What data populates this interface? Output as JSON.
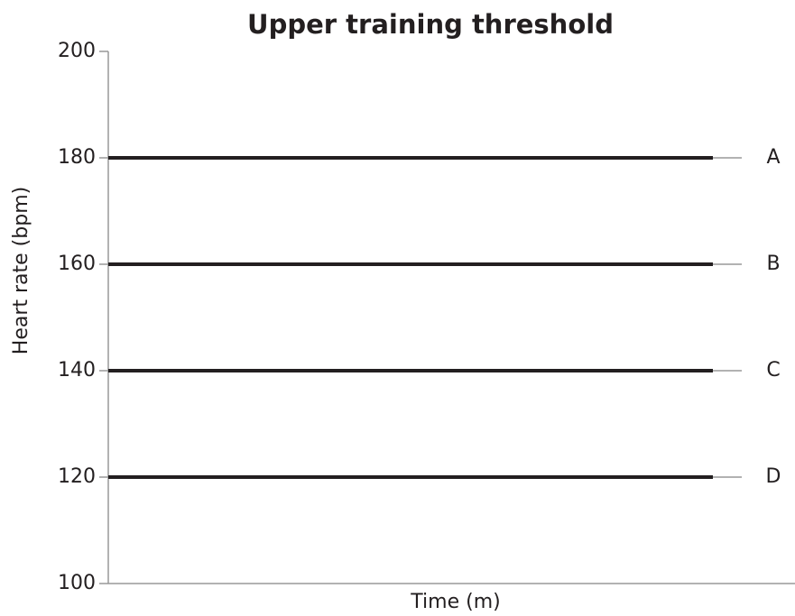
{
  "chart_data": {
    "type": "hline",
    "title": "Upper training threshold",
    "y_label": "Heart rate (bpm)",
    "x_label": "Time (m)",
    "series": [
      {
        "name": "A",
        "value": 180,
        "color": "#231f20"
      },
      {
        "name": "B",
        "value": 160,
        "color": "#231f20"
      },
      {
        "name": "C",
        "value": 140,
        "color": "#231f20"
      },
      {
        "name": "D",
        "value": 120,
        "color": "#231f20"
      }
    ],
    "ylim": [
      100,
      200
    ],
    "yticks": [
      100,
      120,
      140,
      160,
      180,
      200
    ]
  }
}
